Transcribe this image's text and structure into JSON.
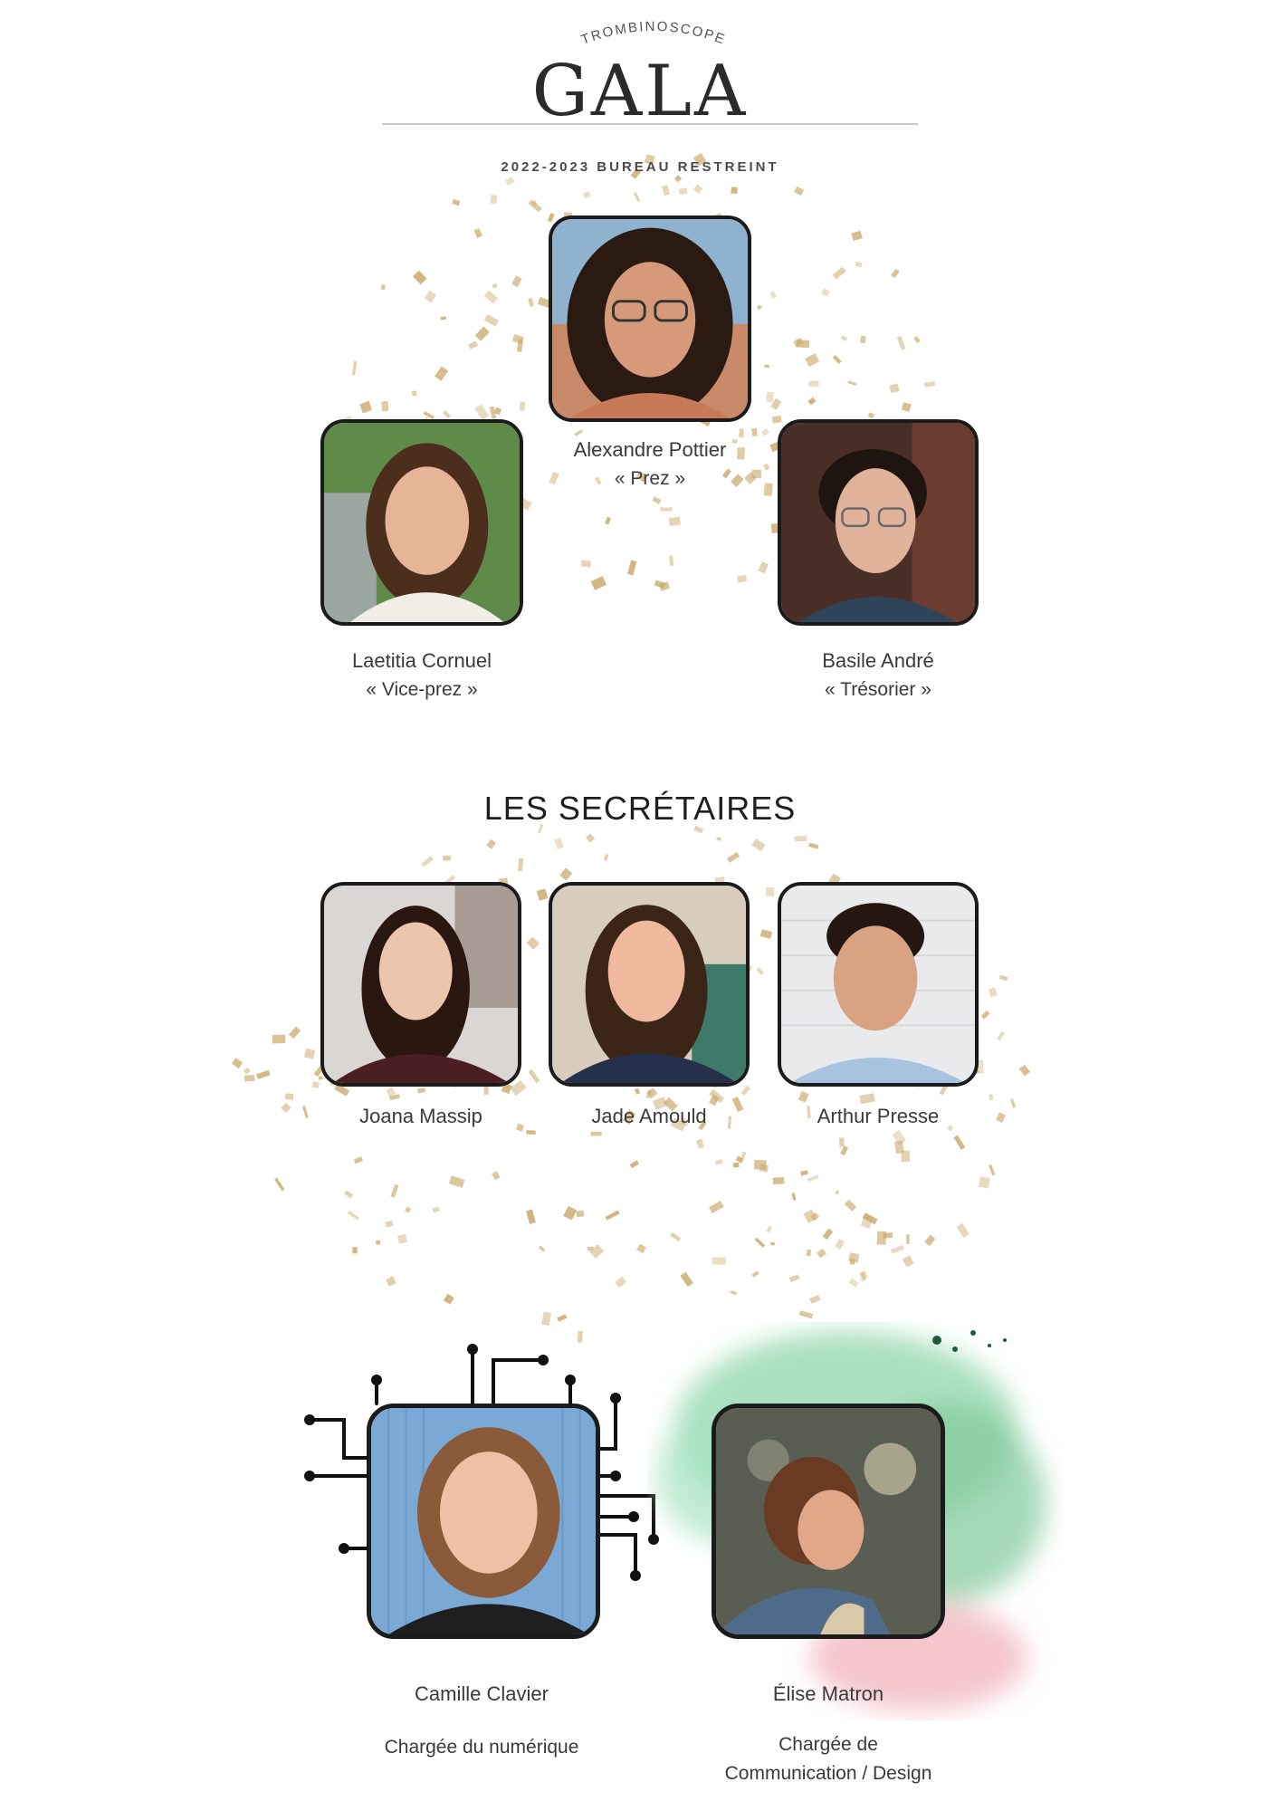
{
  "header": {
    "kicker": "TROMBINOSCOPE",
    "title": "GALA",
    "subtitle": "2022-2023 BUREAU RESTREINT"
  },
  "bureau": [
    {
      "name": "Alexandre Pottier",
      "role": "« Prez »"
    },
    {
      "name": "Laetitia Cornuel",
      "role": "« Vice-prez »"
    },
    {
      "name": "Basile André",
      "role": "« Trésorier »"
    }
  ],
  "secretaires": {
    "title": "LES SECRÉTAIRES",
    "members": [
      {
        "name": "Joana Massip"
      },
      {
        "name": "Jade Amould"
      },
      {
        "name": "Arthur Presse"
      }
    ]
  },
  "charges": [
    {
      "name": "Camille  Clavier",
      "role": "Chargée du numérique"
    },
    {
      "name": "Élise Matron",
      "role_line1": "Chargée de",
      "role_line2": "Communication / Design"
    }
  ],
  "colors": {
    "confetti_gold": "#c9a86a",
    "frame": "#1b1b1b",
    "watercolor_green": "#7fcf9a",
    "watercolor_pink": "#f2b8c2",
    "circuit": "#111111"
  }
}
